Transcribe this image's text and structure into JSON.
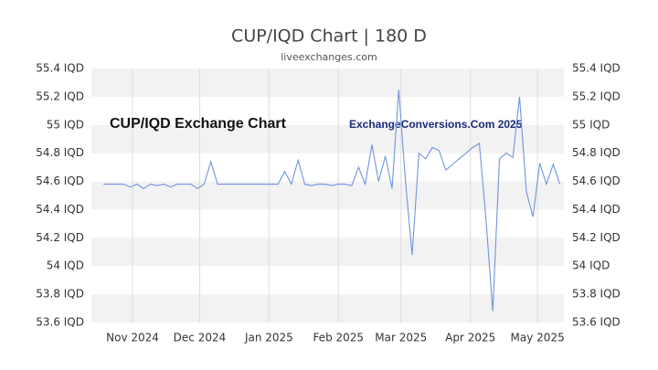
{
  "chart_data": {
    "type": "line",
    "title": "CUP/IQD Chart | 180 D",
    "subtitle": "liveexchanges.com",
    "annotations": [
      "CUP/IQD Exchange Chart",
      "ExchangeConversions.Com 2025"
    ],
    "series": [
      {
        "name": "CUP/IQD",
        "color": "#6f95e0",
        "values": [
          54.58,
          54.58,
          54.58,
          54.58,
          54.56,
          54.58,
          54.55,
          54.58,
          54.57,
          54.58,
          54.56,
          54.58,
          54.58,
          54.58,
          54.55,
          54.58,
          54.74,
          54.58,
          54.58,
          54.58,
          54.58,
          54.58,
          54.58,
          54.58,
          54.58,
          54.58,
          54.58,
          54.67,
          54.58,
          54.75,
          54.58,
          54.57,
          54.58,
          54.58,
          54.57,
          54.58,
          54.58,
          54.57,
          54.7,
          54.58,
          54.86,
          54.6,
          54.78,
          54.55,
          55.25,
          54.6,
          54.08,
          54.8,
          54.76,
          54.84,
          54.82,
          54.68,
          54.72,
          54.76,
          54.8,
          54.84,
          54.87,
          54.33,
          53.68,
          54.76,
          54.8,
          54.77,
          55.2,
          54.53,
          54.35,
          54.73,
          54.58,
          54.72,
          54.58
        ]
      }
    ],
    "xlim": [
      -1.8,
      68.6
    ],
    "xticks": [
      {
        "value": 4.33,
        "label": "Nov 2024"
      },
      {
        "value": 14.33,
        "label": "Dec 2024"
      },
      {
        "value": 24.67,
        "label": "Jan 2025"
      },
      {
        "value": 35,
        "label": "Feb 2025"
      },
      {
        "value": 44.33,
        "label": "Mar 2025"
      },
      {
        "value": 54.67,
        "label": "Apr 2025"
      },
      {
        "value": 64.67,
        "label": "May 2025"
      }
    ],
    "ylim": [
      53.6,
      55.4
    ],
    "yticks": [
      {
        "value": 53.6,
        "label": "53.6 IQD"
      },
      {
        "value": 53.8,
        "label": "53.8 IQD"
      },
      {
        "value": 54,
        "label": "54 IQD"
      },
      {
        "value": 54.2,
        "label": "54.2 IQD"
      },
      {
        "value": 54.4,
        "label": "54.4 IQD"
      },
      {
        "value": 54.6,
        "label": "54.6 IQD"
      },
      {
        "value": 54.8,
        "label": "54.8 IQD"
      },
      {
        "value": 55,
        "label": "55 IQD"
      },
      {
        "value": 55.2,
        "label": "55.2 IQD"
      },
      {
        "value": 55.4,
        "label": "55.4 IQD"
      }
    ],
    "grid": true
  }
}
